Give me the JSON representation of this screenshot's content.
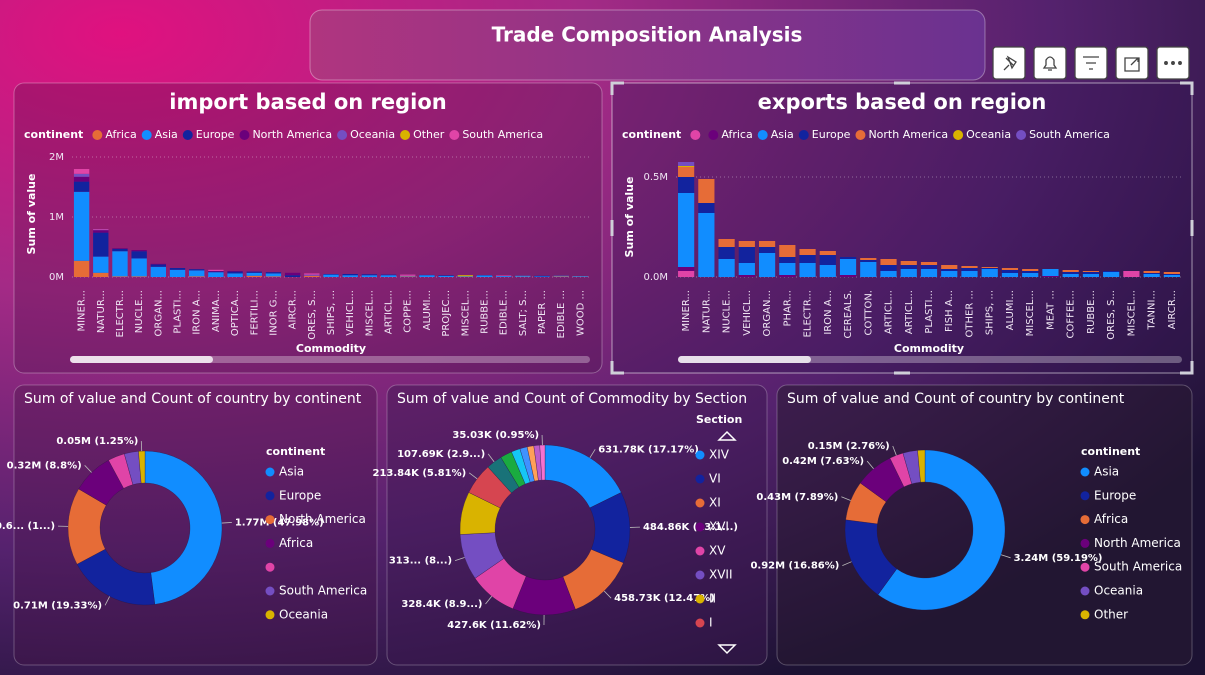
{
  "dashboard_title": "Trade Composition Analysis",
  "chart_data": [
    {
      "type": "bar",
      "stacked": true,
      "title": "import based on region",
      "legend_title": "continent",
      "x_label": "Commodity",
      "y_label": "Sum of value",
      "categories": [
        "MINER...",
        "NATUR...",
        "ELECTR...",
        "NUCLE...",
        "ORGAN...",
        "PLASTI...",
        "IRON A...",
        "ANIMA...",
        "OPTICA...",
        "FERTILI...",
        "INOR G...",
        "AIRCR...",
        "ORES, S...",
        "SHIPS, ...",
        "VEHICL...",
        "MISCEL...",
        "ARTICL...",
        "COPPE...",
        "ALUMI...",
        "PROJEC...",
        "MISCEL...",
        "RUBBE...",
        "EDIBLE...",
        "SALT; S...",
        "PAPER ...",
        "EDIBLE ...",
        "WOOD ..."
      ],
      "series": [
        {
          "name": "Africa",
          "color": "#E66C37",
          "values": [
            270000,
            70000,
            10000,
            10000,
            0,
            0,
            10000,
            0,
            0,
            20000,
            10000,
            0,
            20000,
            0,
            0,
            0,
            0,
            10000,
            0,
            0,
            0,
            0,
            0,
            5000,
            0,
            10000,
            5000
          ]
        },
        {
          "name": "Asia",
          "color": "#118DFF",
          "values": [
            1150000,
            270000,
            420000,
            300000,
            170000,
            120000,
            100000,
            80000,
            60000,
            50000,
            50000,
            0,
            0,
            40000,
            30000,
            30000,
            30000,
            10000,
            30000,
            20000,
            10000,
            25000,
            15000,
            15000,
            10000,
            10000,
            10000
          ]
        },
        {
          "name": "Europe",
          "color": "#12239E",
          "values": [
            170000,
            400000,
            40000,
            120000,
            40000,
            30000,
            20000,
            10000,
            30000,
            20000,
            20000,
            30000,
            0,
            10000,
            20000,
            15000,
            10000,
            0,
            5000,
            10000,
            0,
            5000,
            0,
            0,
            10000,
            0,
            0
          ]
        },
        {
          "name": "North America",
          "color": "#6B007B",
          "values": [
            80000,
            40000,
            10000,
            20000,
            10000,
            0,
            0,
            10000,
            10000,
            0,
            0,
            40000,
            0,
            0,
            0,
            0,
            0,
            0,
            0,
            0,
            0,
            0,
            0,
            0,
            0,
            0,
            0
          ]
        },
        {
          "name": "Oceania",
          "color": "#744EC2",
          "values": [
            50000,
            10000,
            0,
            0,
            0,
            0,
            0,
            0,
            0,
            0,
            0,
            0,
            20000,
            0,
            0,
            0,
            0,
            0,
            0,
            0,
            0,
            0,
            0,
            0,
            0,
            0,
            0
          ]
        },
        {
          "name": "Other",
          "color": "#D9B300",
          "values": [
            0,
            0,
            0,
            0,
            0,
            0,
            0,
            0,
            0,
            0,
            0,
            0,
            0,
            0,
            0,
            0,
            0,
            0,
            0,
            0,
            20000,
            0,
            0,
            0,
            0,
            0,
            0
          ]
        },
        {
          "name": "South America",
          "color": "#E044A7",
          "values": [
            80000,
            10000,
            0,
            0,
            0,
            0,
            0,
            20000,
            0,
            0,
            0,
            0,
            20000,
            0,
            0,
            0,
            0,
            20000,
            0,
            0,
            0,
            0,
            10000,
            0,
            0,
            0,
            0
          ]
        }
      ],
      "ylim": [
        0,
        2100000
      ],
      "yticks": [
        {
          "value": 0,
          "label": "0M"
        },
        {
          "value": 1000000,
          "label": "1M"
        },
        {
          "value": 2000000,
          "label": "2M"
        }
      ],
      "grid": true
    },
    {
      "type": "bar",
      "stacked": true,
      "title": "exports based on region",
      "legend_title": "continent",
      "x_label": "Commodity",
      "y_label": "Sum of value",
      "categories": [
        "MINER...",
        "NATUR...",
        "NUCLE...",
        "VEHICL...",
        "ORGAN...",
        "PHAR...",
        "ELECTR...",
        "IRON A...",
        "CEREALS.",
        "COTTON.",
        "ARTICL...",
        "ARTICL...",
        "PLASTI...",
        "FISH A...",
        "OTHER ...",
        "SHIPS, ...",
        "ALUMI...",
        "MISCEL...",
        "MEAT ...",
        "COFFEE...",
        "RUBBE...",
        "ORES, S...",
        "MISCEL...",
        "TANNI...",
        "AIRCR..."
      ],
      "series": [
        {
          "name": null,
          "color": "#E044A7",
          "values": [
            30000,
            0,
            0,
            0,
            0,
            0,
            0,
            0,
            0,
            0,
            0,
            0,
            0,
            0,
            0,
            0,
            0,
            0,
            0,
            0,
            0,
            0,
            30000,
            0,
            0
          ]
        },
        {
          "name": "Africa",
          "color": "#6B007B",
          "values": [
            20000,
            0,
            0,
            10000,
            0,
            10000,
            0,
            0,
            10000,
            0,
            0,
            0,
            0,
            0,
            0,
            0,
            0,
            0,
            5000,
            0,
            0,
            0,
            0,
            0,
            0
          ]
        },
        {
          "name": "Asia",
          "color": "#118DFF",
          "values": [
            370000,
            320000,
            90000,
            60000,
            120000,
            60000,
            70000,
            60000,
            80000,
            75000,
            30000,
            40000,
            40000,
            30000,
            30000,
            40000,
            20000,
            20000,
            35000,
            15000,
            15000,
            25000,
            0,
            15000,
            10000
          ]
        },
        {
          "name": "Europe",
          "color": "#12239E",
          "values": [
            80000,
            50000,
            60000,
            80000,
            30000,
            30000,
            40000,
            50000,
            10000,
            10000,
            30000,
            20000,
            20000,
            10000,
            15000,
            5000,
            15000,
            10000,
            0,
            10000,
            10000,
            5000,
            0,
            5000,
            5000
          ]
        },
        {
          "name": "North America",
          "color": "#E66C37",
          "values": [
            50000,
            120000,
            40000,
            30000,
            30000,
            60000,
            30000,
            20000,
            0,
            10000,
            30000,
            20000,
            15000,
            20000,
            10000,
            5000,
            10000,
            10000,
            0,
            10000,
            5000,
            0,
            0,
            10000,
            10000
          ]
        },
        {
          "name": "Oceania",
          "color": "#D9B300",
          "values": [
            5000,
            0,
            0,
            0,
            0,
            0,
            0,
            0,
            0,
            0,
            0,
            0,
            0,
            0,
            0,
            0,
            0,
            0,
            0,
            0,
            0,
            0,
            0,
            0,
            0
          ]
        },
        {
          "name": "South America",
          "color": "#744EC2",
          "values": [
            20000,
            0,
            0,
            0,
            0,
            0,
            0,
            0,
            0,
            0,
            0,
            0,
            0,
            0,
            0,
            0,
            0,
            0,
            0,
            0,
            0,
            0,
            0,
            0,
            0
          ]
        }
      ],
      "ylim": [
        0,
        600000
      ],
      "yticks": [
        {
          "value": 0,
          "label": "0.0M"
        },
        {
          "value": 500000,
          "label": "0.5M"
        }
      ],
      "grid": true
    },
    {
      "type": "pie",
      "donut": true,
      "title": "Sum of value and Count of country by continent",
      "legend_title": "continent",
      "categories": [
        "Asia",
        "Europe",
        "North America",
        "Africa",
        null,
        "South America",
        "Oceania"
      ],
      "values": [
        1770000,
        710000,
        600000,
        320000,
        130000,
        110000,
        50000
      ],
      "value_labels": [
        "1.77M (47.98%)",
        "0.71M (19.33%)",
        "0.6... (1...)",
        "0.32M (8.8%)",
        null,
        null,
        "0.05M (1.25%)"
      ],
      "colors": [
        "#118DFF",
        "#12239E",
        "#E66C37",
        "#6B007B",
        "#E044A7",
        "#744EC2",
        "#D9B300"
      ]
    },
    {
      "type": "pie",
      "donut": true,
      "title": "Sum of value and Count of Commodity by Section",
      "legend_title": "Section",
      "categories": [
        "XIV",
        "VI",
        "XI",
        "XVI",
        "XV",
        "XVII",
        "II",
        "I",
        null,
        null,
        null,
        null,
        null,
        null,
        null
      ],
      "values": [
        631780,
        484860,
        458730,
        427600,
        328400,
        313000,
        290000,
        213840,
        107690,
        80000,
        60000,
        50000,
        45000,
        40000,
        35030
      ],
      "value_labels": [
        "631.78K (17.17%)",
        "484.86K (13.1...)",
        "458.73K (12.47%)",
        "427.6K (11.62%)",
        "328.4K (8.9...)",
        "313... (8...)",
        null,
        "213.84K (5.81%)",
        "107.69K (2.9...)",
        null,
        null,
        null,
        null,
        null,
        "35.03K (0.95%)"
      ],
      "colors": [
        "#118DFF",
        "#12239E",
        "#E66C37",
        "#6B007B",
        "#E044A7",
        "#744EC2",
        "#D9B300",
        "#D64550",
        "#197278",
        "#1AAB40",
        "#15C6F4",
        "#4092FF",
        "#FFA058",
        "#BE5DC9",
        "#F472D0"
      ]
    },
    {
      "type": "pie",
      "donut": true,
      "title": "Sum of value and Count of country by continent",
      "legend_title": "continent",
      "categories": [
        "Asia",
        "Europe",
        "Africa",
        "North America",
        "South America",
        "Oceania",
        "Other"
      ],
      "values": [
        3240000,
        920000,
        430000,
        420000,
        150000,
        160000,
        80000
      ],
      "value_labels": [
        "3.24M (59.19%)",
        "0.92M (16.86%)",
        "0.43M (7.89%)",
        "0.42M (7.63%)",
        "0.15M (2.76%)",
        null,
        null
      ],
      "colors": [
        "#118DFF",
        "#12239E",
        "#E66C37",
        "#6B007B",
        "#E044A7",
        "#744EC2",
        "#D9B300"
      ]
    }
  ]
}
